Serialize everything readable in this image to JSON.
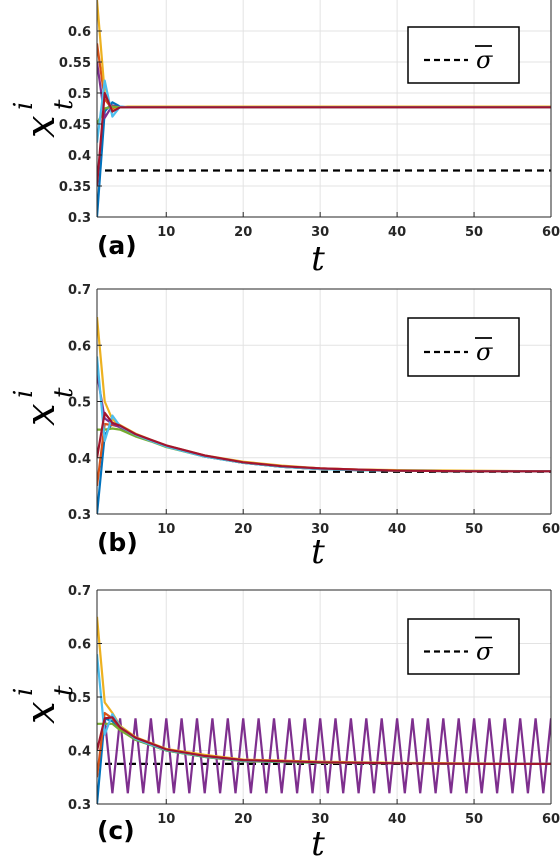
{
  "chart_data": [
    {
      "type": "line",
      "panel_label": "(a)",
      "xlabel": "t",
      "ylabel_base": "x",
      "ylabel_sup": "i",
      "ylabel_sub": "t",
      "xlim": [
        1,
        60
      ],
      "ylim": [
        0.3,
        0.65
      ],
      "xticks": [
        10,
        20,
        30,
        40,
        50,
        60
      ],
      "yticks": [
        0.3,
        0.35,
        0.4,
        0.45,
        0.5,
        0.55,
        0.6
      ],
      "grid": true,
      "legend": {
        "label": "σ",
        "overline": true,
        "style": "dashed",
        "position": "top-right"
      },
      "reference_line": 0.375,
      "series": [
        {
          "color": "#0072BD",
          "x": [
            1,
            2,
            3,
            4,
            5,
            60
          ],
          "y": [
            0.3,
            0.47,
            0.485,
            0.478,
            0.477,
            0.477
          ]
        },
        {
          "color": "#D95319",
          "x": [
            1,
            2,
            3,
            4,
            5,
            60
          ],
          "y": [
            0.58,
            0.49,
            0.474,
            0.477,
            0.477,
            0.477
          ]
        },
        {
          "color": "#EDB120",
          "x": [
            1,
            2,
            3,
            4,
            5,
            60
          ],
          "y": [
            0.65,
            0.5,
            0.472,
            0.477,
            0.478,
            0.478
          ]
        },
        {
          "color": "#7E2F8E",
          "x": [
            1,
            2,
            3,
            4,
            5,
            60
          ],
          "y": [
            0.55,
            0.46,
            0.48,
            0.477,
            0.477,
            0.477
          ]
        },
        {
          "color": "#77AC30",
          "x": [
            1,
            2,
            3,
            4,
            5,
            60
          ],
          "y": [
            0.45,
            0.475,
            0.478,
            0.477,
            0.477,
            0.477
          ]
        },
        {
          "color": "#4DBEEE",
          "x": [
            1,
            2,
            3,
            4,
            5,
            60
          ],
          "y": [
            0.42,
            0.52,
            0.462,
            0.478,
            0.477,
            0.477
          ]
        },
        {
          "color": "#A2142F",
          "x": [
            1,
            2,
            3,
            4,
            5,
            60
          ],
          "y": [
            0.35,
            0.5,
            0.47,
            0.477,
            0.477,
            0.477
          ]
        }
      ]
    },
    {
      "type": "line",
      "panel_label": "(b)",
      "xlabel": "t",
      "ylabel_base": "x",
      "ylabel_sup": "i",
      "ylabel_sub": "t",
      "xlim": [
        1,
        60
      ],
      "ylim": [
        0.3,
        0.7
      ],
      "xticks": [
        10,
        20,
        30,
        40,
        50,
        60
      ],
      "yticks": [
        0.3,
        0.4,
        0.5,
        0.6,
        0.7
      ],
      "grid": true,
      "legend": {
        "label": "σ",
        "overline": true,
        "style": "dashed",
        "position": "top-right"
      },
      "reference_line": 0.375,
      "series": [
        {
          "color": "#0072BD",
          "x": [
            1,
            2,
            3,
            4,
            6,
            8,
            10,
            15,
            20,
            25,
            30,
            35,
            40,
            50,
            60
          ],
          "y": [
            0.3,
            0.44,
            0.462,
            0.455,
            0.44,
            0.43,
            0.42,
            0.402,
            0.391,
            0.384,
            0.38,
            0.378,
            0.377,
            0.376,
            0.376
          ]
        },
        {
          "color": "#D95319",
          "x": [
            1,
            2,
            3,
            4,
            6,
            8,
            10,
            15,
            20,
            25,
            30,
            35,
            40,
            50,
            60
          ],
          "y": [
            0.35,
            0.46,
            0.458,
            0.455,
            0.441,
            0.431,
            0.421,
            0.403,
            0.392,
            0.385,
            0.381,
            0.379,
            0.377,
            0.376,
            0.376
          ]
        },
        {
          "color": "#EDB120",
          "x": [
            1,
            2,
            3,
            4,
            6,
            8,
            10,
            15,
            20,
            25,
            30,
            35,
            40,
            50,
            60
          ],
          "y": [
            0.65,
            0.5,
            0.468,
            0.458,
            0.443,
            0.432,
            0.422,
            0.404,
            0.393,
            0.386,
            0.381,
            0.379,
            0.378,
            0.377,
            0.376
          ]
        },
        {
          "color": "#7E2F8E",
          "x": [
            1,
            2,
            3,
            4,
            6,
            8,
            10,
            15,
            20,
            25,
            30,
            35,
            40,
            50,
            60
          ],
          "y": [
            0.55,
            0.47,
            0.46,
            0.454,
            0.44,
            0.43,
            0.42,
            0.402,
            0.391,
            0.384,
            0.38,
            0.378,
            0.377,
            0.376,
            0.376
          ]
        },
        {
          "color": "#77AC30",
          "x": [
            1,
            2,
            3,
            4,
            6,
            8,
            10,
            15,
            20,
            25,
            30,
            35,
            40,
            50,
            60
          ],
          "y": [
            0.45,
            0.45,
            0.452,
            0.45,
            0.438,
            0.429,
            0.419,
            0.402,
            0.391,
            0.384,
            0.38,
            0.378,
            0.377,
            0.376,
            0.376
          ]
        },
        {
          "color": "#4DBEEE",
          "x": [
            1,
            2,
            3,
            4,
            6,
            8,
            10,
            15,
            20,
            25,
            30,
            35,
            40,
            50,
            60
          ],
          "y": [
            0.58,
            0.43,
            0.475,
            0.456,
            0.441,
            0.43,
            0.42,
            0.402,
            0.391,
            0.384,
            0.38,
            0.378,
            0.377,
            0.376,
            0.376
          ]
        },
        {
          "color": "#A2142F",
          "x": [
            1,
            2,
            3,
            4,
            6,
            8,
            10,
            15,
            20,
            25,
            30,
            35,
            40,
            50,
            60
          ],
          "y": [
            0.4,
            0.48,
            0.462,
            0.457,
            0.442,
            0.432,
            0.422,
            0.404,
            0.392,
            0.385,
            0.381,
            0.379,
            0.377,
            0.376,
            0.376
          ]
        }
      ]
    },
    {
      "type": "line",
      "panel_label": "(c)",
      "xlabel": "t",
      "ylabel_base": "x",
      "ylabel_sup": "i",
      "ylabel_sub": "t",
      "xlim": [
        1,
        60
      ],
      "ylim": [
        0.3,
        0.7
      ],
      "xticks": [
        10,
        20,
        30,
        40,
        50,
        60
      ],
      "yticks": [
        0.3,
        0.4,
        0.5,
        0.6,
        0.7
      ],
      "grid": true,
      "legend": {
        "label": "σ",
        "overline": true,
        "style": "dashed",
        "position": "top-right"
      },
      "reference_line": 0.375,
      "oscillation": {
        "color": "#7E2F8E",
        "start": 2,
        "end": 60,
        "high": 0.46,
        "low": 0.32,
        "step": 1
      },
      "series": [
        {
          "color": "#0072BD",
          "x": [
            1,
            2,
            3,
            4,
            6,
            8,
            10,
            15,
            20,
            30,
            40,
            50,
            60
          ],
          "y": [
            0.3,
            0.46,
            0.455,
            0.44,
            0.42,
            0.41,
            0.4,
            0.388,
            0.38,
            0.377,
            0.376,
            0.375,
            0.375
          ]
        },
        {
          "color": "#D95319",
          "x": [
            1,
            2,
            3,
            4,
            6,
            8,
            10,
            15,
            20,
            30,
            40,
            50,
            60
          ],
          "y": [
            0.35,
            0.47,
            0.46,
            0.442,
            0.423,
            0.412,
            0.402,
            0.39,
            0.381,
            0.378,
            0.376,
            0.375,
            0.375
          ]
        },
        {
          "color": "#EDB120",
          "x": [
            1,
            2,
            3,
            4,
            6,
            8,
            10,
            15,
            20,
            30,
            40,
            50,
            60
          ],
          "y": [
            0.65,
            0.49,
            0.47,
            0.446,
            0.425,
            0.414,
            0.403,
            0.392,
            0.383,
            0.379,
            0.377,
            0.376,
            0.375
          ]
        },
        {
          "color": "#77AC30",
          "x": [
            1,
            2,
            3,
            4,
            6,
            8,
            10,
            15,
            20,
            30,
            40,
            50,
            60
          ],
          "y": [
            0.45,
            0.45,
            0.45,
            0.438,
            0.42,
            0.41,
            0.4,
            0.388,
            0.38,
            0.377,
            0.376,
            0.375,
            0.375
          ]
        },
        {
          "color": "#4DBEEE",
          "x": [
            1,
            2,
            3,
            4,
            6,
            8,
            10,
            15,
            20,
            30,
            40,
            50,
            60
          ],
          "y": [
            0.58,
            0.43,
            0.468,
            0.444,
            0.422,
            0.411,
            0.401,
            0.389,
            0.381,
            0.378,
            0.376,
            0.375,
            0.375
          ]
        },
        {
          "color": "#A2142F",
          "x": [
            1,
            2,
            3,
            4,
            6,
            8,
            10,
            15,
            20,
            30,
            40,
            50,
            60
          ],
          "y": [
            0.4,
            0.46,
            0.462,
            0.443,
            0.424,
            0.413,
            0.402,
            0.39,
            0.382,
            0.378,
            0.376,
            0.375,
            0.375
          ]
        }
      ]
    }
  ]
}
